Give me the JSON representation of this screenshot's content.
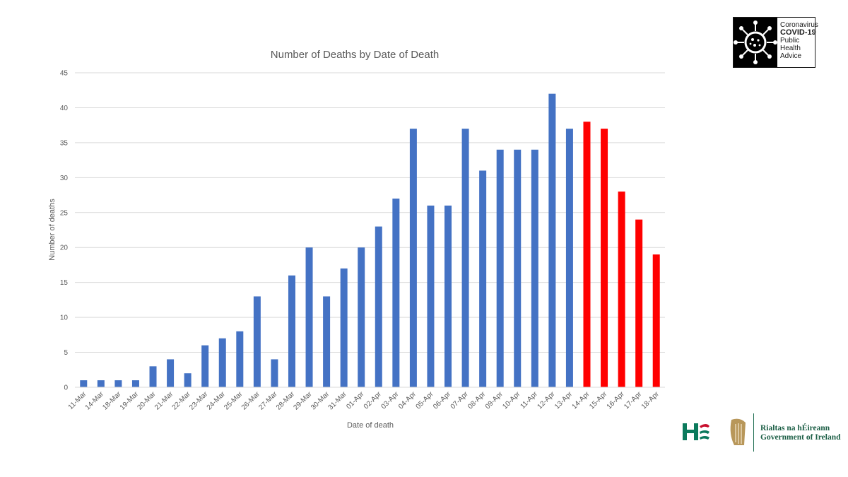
{
  "chart_data": {
    "type": "bar",
    "title": "Number of Deaths by Date of Death",
    "xlabel": "Date of death",
    "ylabel": "Number of deaths",
    "ylim": [
      0,
      45
    ],
    "yticks": [
      0,
      5,
      10,
      15,
      20,
      25,
      30,
      35,
      40,
      45
    ],
    "grid": true,
    "categories": [
      "11-Mar",
      "14-Mar",
      "18-Mar",
      "19-Mar",
      "20-Mar",
      "21-Mar",
      "22-Mar",
      "23-Mar",
      "24-Mar",
      "25-Mar",
      "26-Mar",
      "27-Mar",
      "28-Mar",
      "29-Mar",
      "30-Mar",
      "31-Mar",
      "01-Apr",
      "02-Apr",
      "03-Apr",
      "04-Apr",
      "05-Apr",
      "06-Apr",
      "07-Apr",
      "08-Apr",
      "09-Apr",
      "10-Apr",
      "11-Apr",
      "12-Apr",
      "13-Apr",
      "14-Apr",
      "15-Apr",
      "16-Apr",
      "17-Apr",
      "18-Apr"
    ],
    "values": [
      1,
      1,
      1,
      1,
      3,
      4,
      2,
      6,
      7,
      8,
      13,
      4,
      16,
      20,
      13,
      17,
      20,
      23,
      27,
      37,
      26,
      26,
      37,
      31,
      34,
      34,
      34,
      42,
      37,
      38,
      37,
      28,
      24,
      19
    ],
    "highlight_from_index": 29,
    "colors": {
      "primary": "#4472c4",
      "highlight": "#ff0000",
      "grid": "#d9d9d9",
      "text": "#595959"
    }
  },
  "badge": {
    "line1": "Coronavirus",
    "line2": "COVID-19",
    "line3": "Public Health",
    "line4": "Advice",
    "icon": "virus-icon"
  },
  "logos": {
    "hse": "hse-logo-icon",
    "harp": "harp-icon",
    "gov_line1": "Rialtas na hÉireann",
    "gov_line2": "Government of Ireland"
  }
}
